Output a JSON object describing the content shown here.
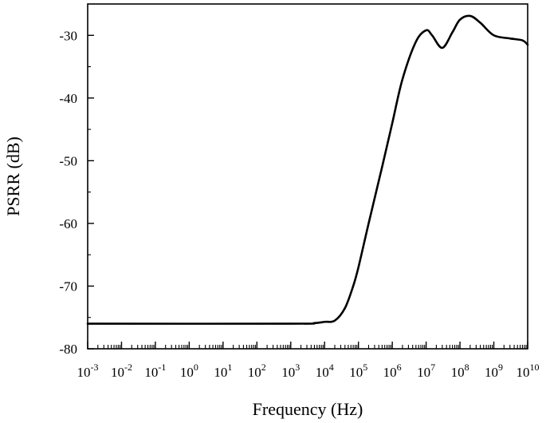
{
  "chart_data": {
    "type": "line",
    "xlabel": "Frequency (Hz)",
    "ylabel": "PSRR (dB)",
    "xscale": "log",
    "xlim_exp": [
      -3,
      10
    ],
    "ylim": [
      -80,
      -25
    ],
    "x_ticks": [
      {
        "base": "10",
        "exp": "-3"
      },
      {
        "base": "10",
        "exp": "-2"
      },
      {
        "base": "10",
        "exp": "-1"
      },
      {
        "base": "10",
        "exp": "0"
      },
      {
        "base": "10",
        "exp": "1"
      },
      {
        "base": "10",
        "exp": "2"
      },
      {
        "base": "10",
        "exp": "3"
      },
      {
        "base": "10",
        "exp": "4"
      },
      {
        "base": "10",
        "exp": "5"
      },
      {
        "base": "10",
        "exp": "6"
      },
      {
        "base": "10",
        "exp": "7"
      },
      {
        "base": "10",
        "exp": "8"
      },
      {
        "base": "10",
        "exp": "9"
      },
      {
        "base": "10",
        "exp": "10"
      }
    ],
    "y_ticks": [
      "-80",
      "-70",
      "-60",
      "-50",
      "-40",
      "-30"
    ],
    "y_tick_values": [
      -80,
      -70,
      -60,
      -50,
      -40,
      -30
    ],
    "grid": false,
    "series": [
      {
        "color": "#000000",
        "points": [
          {
            "x": 0.001,
            "y": -76.0
          },
          {
            "x": 1000,
            "y": -76.0
          },
          {
            "x": 5000,
            "y": -75.9
          },
          {
            "x": 10000,
            "y": -75.7
          },
          {
            "x": 20000,
            "y": -75.5
          },
          {
            "x": 40000,
            "y": -73.5
          },
          {
            "x": 70000,
            "y": -70.0
          },
          {
            "x": 100000,
            "y": -67.0
          },
          {
            "x": 200000,
            "y": -60.0
          },
          {
            "x": 500000,
            "y": -51.0
          },
          {
            "x": 1000000,
            "y": -44.0
          },
          {
            "x": 2000000,
            "y": -37.0
          },
          {
            "x": 5000000,
            "y": -31.0
          },
          {
            "x": 10000000,
            "y": -29.2
          },
          {
            "x": 15000000,
            "y": -30.0
          },
          {
            "x": 30000000,
            "y": -32.0
          },
          {
            "x": 60000000,
            "y": -29.5
          },
          {
            "x": 100000000,
            "y": -27.5
          },
          {
            "x": 200000000,
            "y": -26.9
          },
          {
            "x": 400000000,
            "y": -28.0
          },
          {
            "x": 1000000000,
            "y": -30.0
          },
          {
            "x": 3000000000,
            "y": -30.5
          },
          {
            "x": 7000000000,
            "y": -30.8
          },
          {
            "x": 10000000000,
            "y": -31.5
          }
        ]
      }
    ]
  }
}
